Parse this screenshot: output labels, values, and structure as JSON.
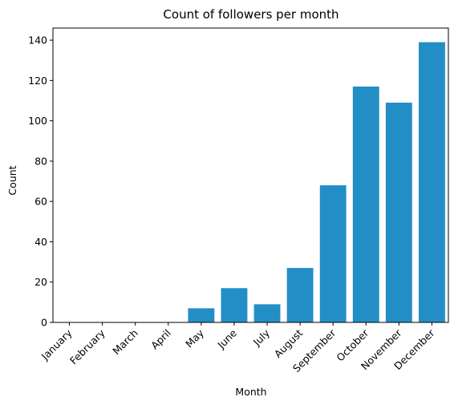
{
  "chart_data": {
    "type": "bar",
    "title": "Count of followers per month",
    "xlabel": "Month",
    "ylabel": "Count",
    "categories": [
      "January",
      "February",
      "March",
      "April",
      "May",
      "June",
      "July",
      "August",
      "September",
      "October",
      "November",
      "December"
    ],
    "values": [
      0,
      0,
      0,
      0,
      7,
      17,
      9,
      27,
      68,
      117,
      109,
      139
    ],
    "ylim": [
      0,
      146
    ],
    "yticks": [
      0,
      20,
      40,
      60,
      80,
      100,
      120,
      140
    ],
    "grid": false,
    "legend": "none",
    "bar_color": "#238ec6"
  }
}
